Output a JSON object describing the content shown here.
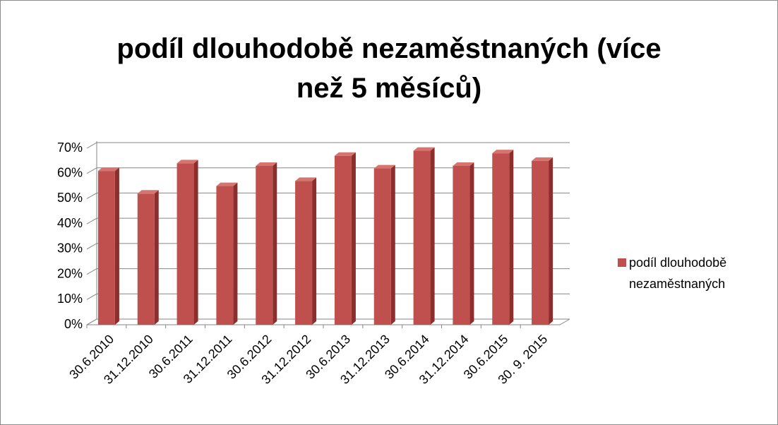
{
  "chart_data": {
    "type": "bar",
    "title": "podíl dlouhodobě nezaměstnaných (více než 5 měsíců)",
    "categories": [
      "30.6.2010",
      "31.12.2010",
      "30.6.2011",
      "31.12.2011",
      "30.6.2012",
      "31.12.2012",
      "30.6.2013",
      "31.12.2013",
      "30.6.2014",
      "31.12.2014",
      "30.6.2015",
      "30. 9. 2015"
    ],
    "series": [
      {
        "name": "podíl dlouhodobě nezaměstnaných",
        "color": "#c0504d",
        "values": [
          61,
          52,
          64,
          55,
          63,
          57,
          67,
          62,
          69,
          63,
          68,
          65
        ]
      }
    ],
    "ylim": [
      0,
      70
    ],
    "yticks": [
      {
        "value": 0,
        "label": "0%"
      },
      {
        "value": 10,
        "label": "10%"
      },
      {
        "value": 20,
        "label": "20%"
      },
      {
        "value": 30,
        "label": "30%"
      },
      {
        "value": 40,
        "label": "40%"
      },
      {
        "value": 50,
        "label": "50%"
      },
      {
        "value": 60,
        "label": "60%"
      },
      {
        "value": 70,
        "label": "70%"
      }
    ],
    "grid": true,
    "legend": "right"
  }
}
